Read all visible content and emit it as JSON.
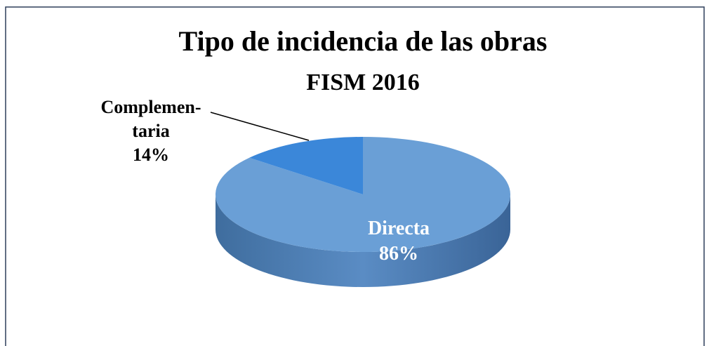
{
  "chart_data": {
    "type": "pie",
    "title": "Tipo de incidencia de las obras",
    "subtitle": "FISM 2016",
    "categories": [
      "Directa",
      "Complemen-taria"
    ],
    "values": [
      86,
      14
    ],
    "value_labels": [
      "86%",
      "14%"
    ],
    "colors": [
      "#6a9fd6",
      "#3b87d9"
    ]
  }
}
